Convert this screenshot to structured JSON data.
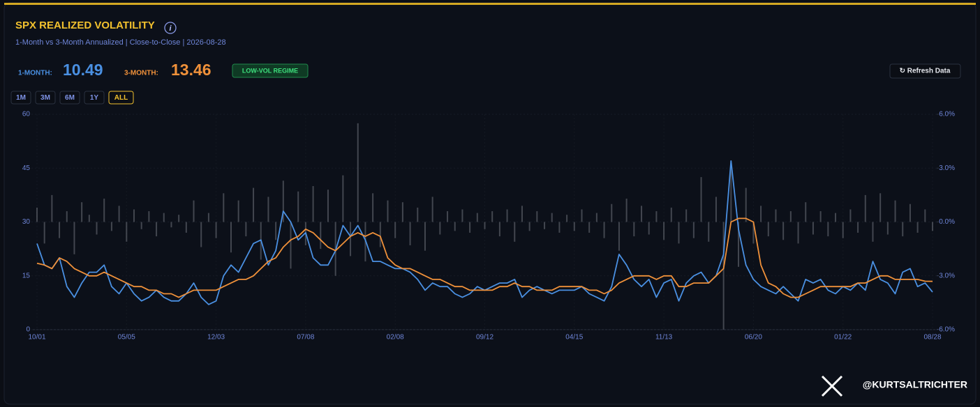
{
  "header": {
    "title": "SPX REALIZED VOLATILITY",
    "info_icon": "i",
    "subtitle": "1-Month vs 3-Month Annualized | Close-to-Close | 2026-08-28",
    "stats": [
      {
        "label": "1-MONTH:",
        "value": "10.49"
      },
      {
        "label": "3-MONTH:",
        "value": "13.46"
      }
    ],
    "badge": "LOW-VOL REGIME",
    "refresh": "↻ Refresh Data",
    "ranges": [
      "1M",
      "3M",
      "6M",
      "1Y",
      "ALL"
    ],
    "active_range": 4
  },
  "footer": {
    "handle": "@KURTSALTRICHTER"
  },
  "chart_data": {
    "type": "line",
    "categories": [
      "10/01",
      null,
      null,
      null,
      null,
      null,
      null,
      null,
      null,
      null,
      null,
      null,
      "05/05",
      null,
      null,
      null,
      null,
      null,
      null,
      null,
      null,
      null,
      null,
      null,
      "12/03",
      null,
      null,
      null,
      null,
      null,
      null,
      null,
      null,
      null,
      null,
      null,
      "07/08",
      null,
      null,
      null,
      null,
      null,
      null,
      null,
      null,
      null,
      null,
      null,
      "02/08",
      null,
      null,
      null,
      null,
      null,
      null,
      null,
      null,
      null,
      null,
      null,
      "09/12",
      null,
      null,
      null,
      null,
      null,
      null,
      null,
      null,
      null,
      null,
      null,
      "04/15",
      null,
      null,
      null,
      null,
      null,
      null,
      null,
      null,
      null,
      null,
      null,
      "11/13",
      null,
      null,
      null,
      null,
      null,
      null,
      null,
      null,
      null,
      null,
      null,
      "06/20",
      null,
      null,
      null,
      null,
      null,
      null,
      null,
      null,
      null,
      null,
      null,
      "01/22",
      null,
      null,
      null,
      null,
      null,
      null,
      null,
      null,
      null,
      null,
      null,
      "08/28"
    ],
    "series": [
      {
        "type": "bar",
        "axis": "y2",
        "color": "#5a5e66",
        "values": [
          0.8,
          -1.2,
          1.5,
          -0.9,
          0.6,
          -1.8,
          1.1,
          0.4,
          -0.7,
          1.3,
          -0.5,
          0.9,
          -1.1,
          0.7,
          -0.4,
          0.6,
          -0.8,
          0.5,
          -0.3,
          0.4,
          -0.6,
          1.2,
          -1.4,
          0.5,
          -0.9,
          1.6,
          -1.7,
          1.2,
          -0.8,
          1.9,
          -2.1,
          1.4,
          -1.0,
          2.3,
          -2.6,
          1.7,
          -1.3,
          2.0,
          -1.5,
          1.8,
          -3.0,
          2.6,
          -1.9,
          5.5,
          -2.2,
          1.6,
          -1.4,
          1.2,
          -0.9,
          1.1,
          -1.3,
          0.8,
          -1.6,
          1.4,
          -0.7,
          0.6,
          -0.5,
          0.7,
          -0.6,
          0.5,
          -0.4,
          0.6,
          -0.8,
          0.7,
          -1.1,
          0.9,
          -0.5,
          0.6,
          -0.4,
          0.5,
          -0.6,
          0.4,
          -0.5,
          0.7,
          -0.6,
          0.5,
          -0.9,
          1.0,
          -1.6,
          1.3,
          -0.8,
          0.9,
          -0.7,
          0.6,
          -1.0,
          0.8,
          -1.2,
          0.7,
          -0.9,
          2.5,
          -1.1,
          1.4,
          -6.0,
          3.0,
          -2.5,
          1.9,
          -1.2,
          0.9,
          -0.8,
          0.7,
          -1.0,
          0.6,
          -1.2,
          1.1,
          -0.7,
          0.6,
          -0.8,
          0.5,
          -0.9,
          0.7,
          -0.6,
          1.5,
          -1.1,
          1.6,
          -0.7,
          1.2,
          -0.8,
          1.0,
          -0.6,
          0.7,
          -0.5
        ]
      },
      {
        "type": "line",
        "color": "#4a90e2",
        "values": [
          24,
          18,
          17,
          20,
          12,
          9,
          13,
          16,
          16,
          18,
          12,
          10,
          13,
          10,
          8,
          9,
          11,
          9,
          8,
          8,
          10,
          13,
          9,
          7,
          8,
          15,
          18,
          16,
          20,
          24,
          25,
          18,
          22,
          33,
          30,
          25,
          27,
          20,
          18,
          18,
          22,
          29,
          26,
          29,
          25,
          19,
          19,
          18,
          17,
          17,
          16,
          14,
          11,
          13,
          12,
          12,
          10,
          9,
          10,
          12,
          11,
          12,
          13,
          13,
          14,
          9,
          11,
          12,
          11,
          10,
          11,
          11,
          11,
          12,
          10,
          9,
          8,
          12,
          21,
          18,
          14,
          12,
          14,
          9,
          13,
          14,
          8,
          13,
          15,
          16,
          13,
          15,
          21,
          47,
          28,
          18,
          14,
          12,
          11,
          10,
          12,
          10,
          8,
          14,
          13,
          14,
          11,
          10,
          12,
          11,
          13,
          11,
          19,
          14,
          13,
          10,
          16,
          17,
          12,
          13,
          10.49
        ]
      },
      {
        "type": "line",
        "color": "#f0913a",
        "values": [
          18.5,
          18,
          17,
          20,
          19,
          17,
          16,
          15,
          15,
          16,
          15,
          14,
          13,
          12,
          12,
          11,
          11,
          10,
          10,
          9,
          10,
          11,
          11,
          11,
          11,
          12,
          13,
          14,
          14,
          15,
          17,
          19,
          20,
          23,
          25,
          26,
          28,
          27,
          25,
          23,
          22,
          24,
          26,
          27,
          26,
          27,
          26,
          20,
          18,
          17,
          17,
          16,
          15,
          14,
          14,
          13,
          12,
          12,
          11,
          11,
          11,
          11,
          12,
          12,
          13,
          12,
          12,
          11,
          11,
          11,
          12,
          12,
          12,
          12,
          11,
          11,
          10,
          11,
          13,
          14,
          15,
          15,
          15,
          14,
          15,
          15,
          12,
          12,
          13,
          13,
          13,
          15,
          17,
          30,
          31,
          31,
          30,
          18,
          13,
          12,
          10,
          9,
          9,
          10,
          11,
          12,
          12,
          12,
          12,
          12,
          13,
          13,
          14,
          15,
          15,
          14,
          14,
          14,
          14,
          13.5,
          13.46
        ]
      }
    ],
    "ylim": [
      0,
      60
    ],
    "yticks": [
      0,
      15,
      30,
      45,
      60
    ],
    "y2lim": [
      -6,
      6
    ],
    "y2ticks": [
      {
        "value": -6,
        "label": "-6.0%"
      },
      {
        "value": -3,
        "label": "-3.0%"
      },
      {
        "value": 0,
        "label": "0.0%"
      },
      {
        "value": 3,
        "label": "3.0%"
      },
      {
        "value": 6,
        "label": "6.0%"
      }
    ],
    "grid": true
  }
}
